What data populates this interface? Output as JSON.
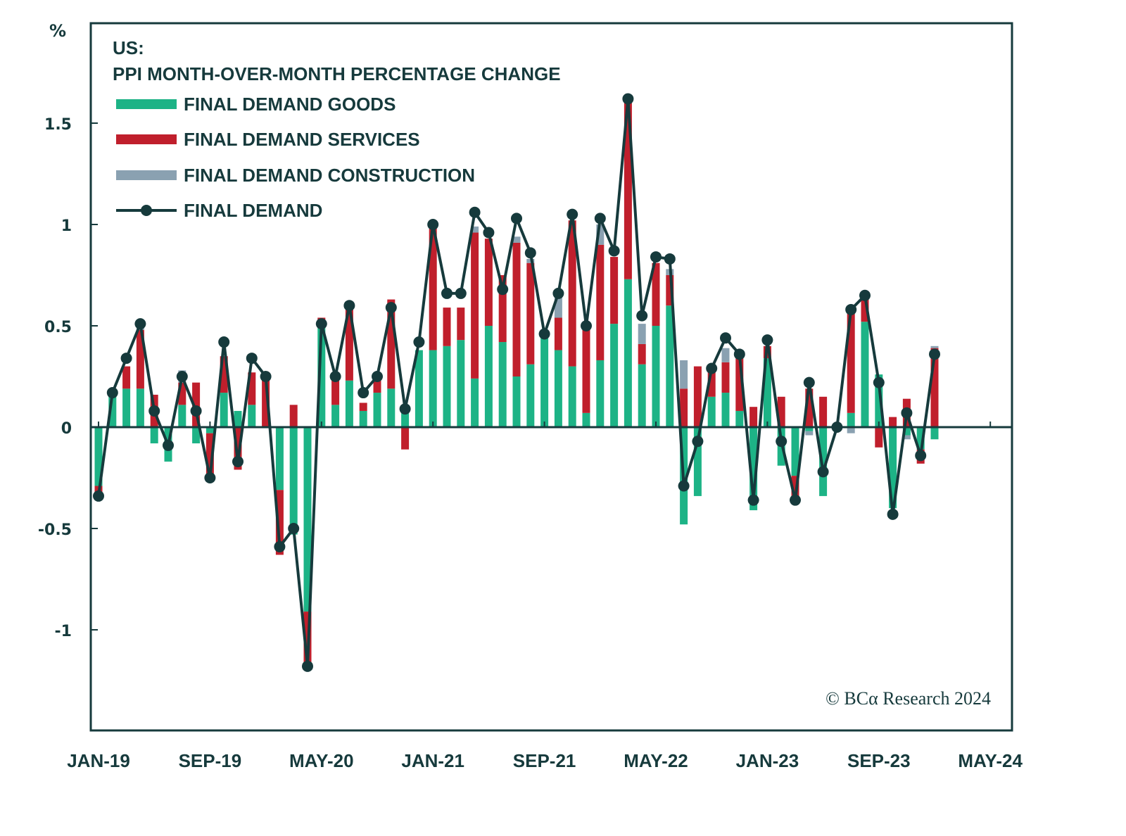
{
  "chart_data": {
    "type": "bar",
    "stacked": true,
    "title": "US:",
    "subtitle": "PPI MONTH-OVER-MONTH PERCENTAGE CHANGE",
    "ylabel": "%",
    "xlabel": "",
    "ylim": [
      -1.4,
      1.95
    ],
    "yticks": [
      -1,
      -0.5,
      0,
      0.5,
      1,
      1.5
    ],
    "ytick_labels": [
      "-1",
      "-0.5",
      "0",
      "0.5",
      "1",
      "1.5"
    ],
    "xtick_labels": [
      "JAN-19",
      "SEP-19",
      "MAY-20",
      "JAN-21",
      "SEP-21",
      "MAY-22",
      "JAN-23",
      "SEP-23",
      "MAY-24"
    ],
    "xtick_month_step": 8,
    "x_months_total": 65,
    "grid": false,
    "legend_position": "top-left",
    "copyright": "© BCα Research 2024",
    "categories": [
      "JAN-19",
      "FEB-19",
      "MAR-19",
      "APR-19",
      "MAY-19",
      "JUN-19",
      "JUL-19",
      "AUG-19",
      "SEP-19",
      "OCT-19",
      "NOV-19",
      "DEC-19",
      "JAN-20",
      "FEB-20",
      "MAR-20",
      "APR-20",
      "MAY-20",
      "JUN-20",
      "JUL-20",
      "AUG-20",
      "SEP-20",
      "OCT-20",
      "NOV-20",
      "DEC-20",
      "JAN-21",
      "FEB-21",
      "MAR-21",
      "APR-21",
      "MAY-21",
      "JUN-21",
      "JUL-21",
      "AUG-21",
      "SEP-21",
      "OCT-21",
      "NOV-21",
      "DEC-21",
      "JAN-22",
      "FEB-22",
      "MAR-22",
      "APR-22",
      "MAY-22",
      "JUN-22",
      "JUL-22",
      "AUG-22",
      "SEP-22",
      "OCT-22",
      "NOV-22",
      "DEC-22",
      "JAN-23",
      "FEB-23",
      "MAR-23",
      "APR-23",
      "MAY-23",
      "JUN-23",
      "JUL-23",
      "AUG-23",
      "SEP-23",
      "OCT-23",
      "NOV-23",
      "DEC-23",
      "JAN-24"
    ],
    "series": [
      {
        "name": "FINAL DEMAND GOODS",
        "kind": "bar",
        "color": "#1db386",
        "values": [
          -0.29,
          0.17,
          0.19,
          0.19,
          -0.08,
          -0.17,
          0.11,
          -0.08,
          -0.03,
          0.17,
          0.08,
          0.11,
          0.0,
          -0.31,
          -0.53,
          -0.91,
          0.52,
          0.11,
          0.23,
          0.08,
          0.17,
          0.19,
          0.08,
          0.38,
          0.38,
          0.4,
          0.43,
          0.24,
          0.5,
          0.42,
          0.25,
          0.31,
          0.44,
          0.38,
          0.3,
          0.07,
          0.33,
          0.51,
          0.73,
          0.31,
          0.5,
          0.6,
          -0.48,
          -0.34,
          0.15,
          0.17,
          0.08,
          -0.41,
          0.34,
          -0.19,
          -0.24,
          -0.02,
          -0.34,
          -0.02,
          0.07,
          0.52,
          0.26,
          -0.4,
          -0.04,
          -0.11,
          -0.06
        ]
      },
      {
        "name": "FINAL DEMAND SERVICES",
        "kind": "bar",
        "color": "#c01f2c",
        "values": [
          -0.05,
          0.0,
          0.11,
          0.29,
          0.16,
          0.0,
          0.11,
          0.22,
          -0.2,
          0.18,
          -0.21,
          0.16,
          0.27,
          -0.32,
          0.11,
          -0.27,
          0.02,
          0.12,
          0.35,
          0.04,
          0.06,
          0.44,
          -0.11,
          0.0,
          0.64,
          0.19,
          0.16,
          0.72,
          0.43,
          0.33,
          0.66,
          0.5,
          0.01,
          0.16,
          0.72,
          0.43,
          0.57,
          0.33,
          0.87,
          0.1,
          0.31,
          0.15,
          0.19,
          0.3,
          0.14,
          0.15,
          0.26,
          0.1,
          0.06,
          0.15,
          -0.1,
          0.19,
          0.15,
          0.0,
          0.49,
          0.11,
          -0.1,
          0.05,
          0.14,
          -0.07,
          0.39
        ]
      },
      {
        "name": "FINAL DEMAND CONSTRUCTION",
        "kind": "bar",
        "color": "#8aa1b1",
        "values": [
          0.0,
          0.0,
          0.0,
          0.04,
          0.0,
          0.0,
          0.06,
          0.0,
          0.0,
          0.0,
          0.0,
          0.0,
          0.0,
          0.0,
          0.0,
          0.0,
          0.0,
          0.0,
          0.0,
          0.0,
          0.0,
          0.0,
          0.0,
          0.0,
          0.0,
          0.0,
          0.0,
          0.03,
          0.0,
          0.0,
          0.03,
          0.02,
          0.0,
          0.1,
          0.0,
          0.0,
          0.1,
          0.0,
          0.0,
          0.1,
          0.0,
          0.03,
          0.14,
          0.0,
          0.0,
          0.07,
          0.0,
          0.0,
          0.0,
          0.0,
          0.0,
          -0.02,
          0.0,
          0.0,
          -0.03,
          0.0,
          0.0,
          0.0,
          -0.02,
          0.0,
          0.01
        ]
      },
      {
        "name": "FINAL DEMAND",
        "kind": "line",
        "color": "#163a3c",
        "values": [
          -0.34,
          0.17,
          0.34,
          0.51,
          0.08,
          -0.09,
          0.25,
          0.08,
          -0.25,
          0.42,
          -0.17,
          0.34,
          0.25,
          -0.59,
          -0.5,
          -1.18,
          0.51,
          0.25,
          0.6,
          0.17,
          0.25,
          0.59,
          0.09,
          0.42,
          1.0,
          0.66,
          0.66,
          1.06,
          0.96,
          0.68,
          1.03,
          0.86,
          0.46,
          0.66,
          1.05,
          0.5,
          1.03,
          0.87,
          1.62,
          0.55,
          0.84,
          0.83,
          -0.29,
          -0.07,
          0.29,
          0.44,
          0.36,
          -0.36,
          0.43,
          -0.07,
          -0.36,
          0.22,
          -0.22,
          0.0,
          0.58,
          0.65,
          0.22,
          -0.43,
          0.07,
          -0.14,
          0.36
        ]
      }
    ]
  }
}
